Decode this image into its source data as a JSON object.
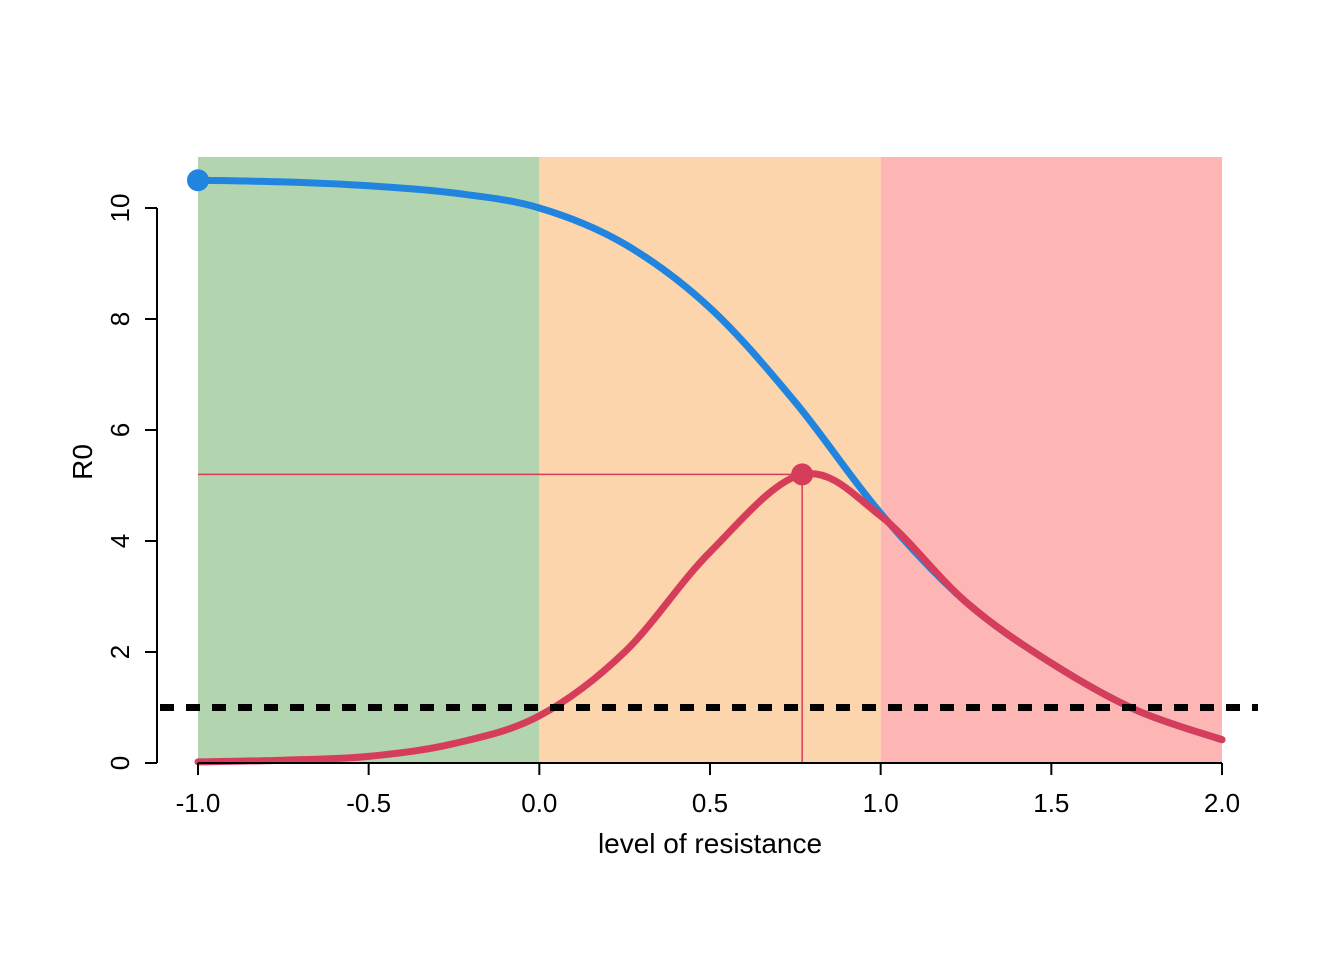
{
  "chart_data": {
    "type": "line",
    "title": "",
    "xlabel": "level of resistance",
    "ylabel": "R0",
    "xlim": [
      -1.0,
      2.0
    ],
    "ylim": [
      0,
      11
    ],
    "x_ticks": [
      "-1.0",
      "-0.5",
      "0.0",
      "0.5",
      "1.0",
      "1.5",
      "2.0"
    ],
    "y_ticks": [
      "0",
      "2",
      "4",
      "6",
      "8",
      "10"
    ],
    "grid": false,
    "legend": "none",
    "regions": [
      {
        "x_from": -1.0,
        "x_to": 0.0,
        "color": "#b2d5b0"
      },
      {
        "x_from": 0.0,
        "x_to": 1.0,
        "color": "#fdd5ac"
      },
      {
        "x_from": 1.0,
        "x_to": 2.0,
        "color": "#feb6b5"
      }
    ],
    "threshold": {
      "y": 1,
      "color": "#000000",
      "style": "dashed"
    },
    "series": [
      {
        "color": "#2185e0",
        "x": [
          -1.0,
          -0.75,
          -0.5,
          -0.25,
          0.0,
          0.25,
          0.5,
          0.75,
          1.0,
          1.25,
          1.5,
          1.75,
          2.0
        ],
        "y": [
          10.5,
          10.47,
          10.4,
          10.27,
          10.0,
          9.35,
          8.2,
          6.5,
          4.5,
          2.9,
          1.8,
          0.95,
          0.42
        ],
        "highlight": {
          "x": -1.0,
          "y": 10.5
        }
      },
      {
        "color": "#d63d5b",
        "x": [
          -1.0,
          -0.75,
          -0.5,
          -0.25,
          0.0,
          0.25,
          0.5,
          0.77,
          1.0,
          1.25,
          1.5,
          1.75,
          2.0
        ],
        "y": [
          0.02,
          0.05,
          0.12,
          0.35,
          0.85,
          2.0,
          3.8,
          5.2,
          4.45,
          2.9,
          1.8,
          0.95,
          0.42
        ],
        "highlight": {
          "x": 0.77,
          "y": 5.2
        }
      }
    ]
  }
}
